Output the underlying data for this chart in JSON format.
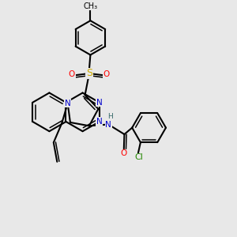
{
  "bg": "#e8e8e8",
  "bond_color": "#000000",
  "bw": 1.5,
  "atom_colors": {
    "N": "#0000cc",
    "O": "#ff0000",
    "S": "#ccaa00",
    "Cl": "#228800",
    "H": "#336666",
    "C": "#000000"
  },
  "fs": 7.5,
  "xlim": [
    0,
    10
  ],
  "ylim": [
    0,
    10
  ]
}
